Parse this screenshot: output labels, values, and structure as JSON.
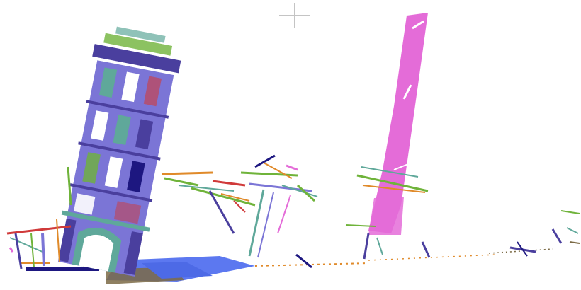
{
  "viewer": {
    "background": "#ffffff",
    "crosshair_color": "#c4c4c4"
  },
  "palette": {
    "facade": "#7b75d6",
    "facade_dark": "#4a3f9e",
    "green": "#6fb33a",
    "teal": "#5fa89a",
    "orange": "#e08a2a",
    "magenta": "#e46cd8",
    "navy": "#1d1780",
    "ground_blue": "#5c78f0",
    "ground_brown": "#7b6a45",
    "red": "#d03a3a"
  }
}
